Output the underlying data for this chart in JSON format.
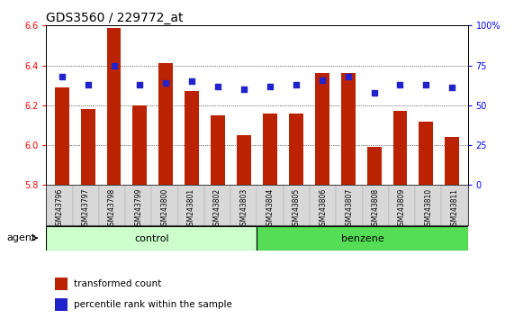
{
  "title": "GDS3560 / 229772_at",
  "samples": [
    "GSM243796",
    "GSM243797",
    "GSM243798",
    "GSM243799",
    "GSM243800",
    "GSM243801",
    "GSM243802",
    "GSM243803",
    "GSM243804",
    "GSM243805",
    "GSM243806",
    "GSM243807",
    "GSM243808",
    "GSM243809",
    "GSM243810",
    "GSM243811"
  ],
  "bar_values": [
    6.29,
    6.18,
    6.59,
    6.2,
    6.41,
    6.27,
    6.15,
    6.05,
    6.16,
    6.16,
    6.36,
    6.36,
    5.99,
    6.17,
    6.12,
    6.04
  ],
  "dot_values": [
    68,
    63,
    75,
    63,
    64,
    65,
    62,
    60,
    62,
    63,
    66,
    68,
    58,
    63,
    63,
    61
  ],
  "ylim_left": [
    5.8,
    6.6
  ],
  "ylim_right": [
    0,
    100
  ],
  "yticks_left": [
    5.8,
    6.0,
    6.2,
    6.4,
    6.6
  ],
  "yticks_right": [
    0,
    25,
    50,
    75,
    100
  ],
  "bar_color": "#bb2200",
  "dot_color": "#2222cc",
  "control_count": 8,
  "benzene_count": 8,
  "control_label": "control",
  "benzene_label": "benzene",
  "agent_label": "agent",
  "legend_bar": "transformed count",
  "legend_dot": "percentile rank within the sample",
  "control_color": "#ccffcc",
  "benzene_color": "#55dd55",
  "grid_color": "#000000",
  "title_fontsize": 10,
  "tick_fontsize": 7,
  "label_fontsize": 8
}
